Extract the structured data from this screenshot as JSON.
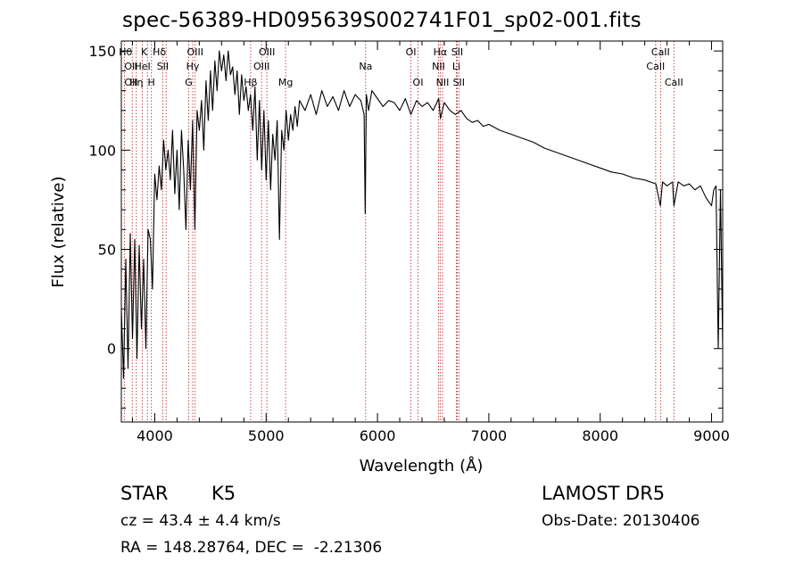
{
  "chart_data": {
    "type": "line",
    "title": "spec-56389-HD095639S002741F01_sp02-001.fits",
    "xlabel": "Wavelength (Å)",
    "ylabel": "Flux (relative)",
    "xlim": [
      3700,
      9100
    ],
    "ylim": [
      -37,
      155
    ],
    "x_ticks": [
      4000,
      5000,
      6000,
      7000,
      8000,
      9000
    ],
    "y_ticks": [
      0,
      50,
      100,
      150
    ],
    "grid": false,
    "series": [
      {
        "x": [
          3700,
          3720,
          3740,
          3760,
          3780,
          3800,
          3820,
          3840,
          3860,
          3880,
          3900,
          3920,
          3940,
          3960,
          3980,
          4000,
          4020,
          4040,
          4060,
          4080,
          4100,
          4120,
          4140,
          4160,
          4180,
          4200,
          4220,
          4240,
          4260,
          4280,
          4300,
          4320,
          4340,
          4360,
          4380,
          4400,
          4420,
          4440,
          4460,
          4480,
          4500,
          4520,
          4540,
          4560,
          4580,
          4600,
          4620,
          4640,
          4660,
          4680,
          4700,
          4720,
          4740,
          4760,
          4780,
          4800,
          4820,
          4840,
          4860,
          4880,
          4900,
          4920,
          4940,
          4960,
          4980,
          5000,
          5020,
          5040,
          5060,
          5080,
          5100,
          5120,
          5140,
          5160,
          5180,
          5200,
          5220,
          5240,
          5260,
          5280,
          5300,
          5350,
          5400,
          5450,
          5500,
          5550,
          5600,
          5650,
          5700,
          5750,
          5800,
          5850,
          5880,
          5890,
          5900,
          5920,
          5950,
          6000,
          6050,
          6100,
          6150,
          6200,
          6250,
          6300,
          6350,
          6400,
          6450,
          6500,
          6550,
          6565,
          6600,
          6650,
          6700,
          6750,
          6800,
          6850,
          6900,
          6950,
          7000,
          7100,
          7200,
          7300,
          7400,
          7500,
          7600,
          7700,
          7800,
          7900,
          8000,
          8100,
          8200,
          8300,
          8400,
          8500,
          8540,
          8560,
          8600,
          8650,
          8662,
          8700,
          8750,
          8800,
          8850,
          8900,
          8950,
          9000,
          9020,
          9040,
          9060,
          9080,
          9100
        ],
        "y": [
          20,
          -15,
          45,
          -10,
          58,
          5,
          55,
          -5,
          52,
          10,
          45,
          0,
          60,
          55,
          30,
          88,
          75,
          92,
          80,
          105,
          90,
          100,
          85,
          110,
          78,
          100,
          70,
          110,
          90,
          60,
          105,
          80,
          115,
          60,
          120,
          110,
          125,
          100,
          135,
          115,
          140,
          120,
          145,
          130,
          150,
          140,
          148,
          135,
          150,
          138,
          142,
          128,
          140,
          118,
          138,
          125,
          132,
          120,
          128,
          110,
          132,
          95,
          125,
          90,
          120,
          85,
          115,
          80,
          108,
          95,
          115,
          55,
          110,
          100,
          120,
          105,
          118,
          110,
          122,
          112,
          125,
          120,
          128,
          118,
          130,
          122,
          127,
          120,
          130,
          122,
          128,
          125,
          118,
          68,
          128,
          120,
          130,
          126,
          122,
          125,
          124,
          120,
          126,
          118,
          125,
          122,
          124,
          120,
          126,
          116,
          124,
          120,
          118,
          120,
          116,
          114,
          115,
          112,
          113,
          110,
          108,
          106,
          104,
          101,
          99,
          97,
          95,
          93,
          91,
          89,
          88,
          86,
          85,
          83,
          72,
          84,
          82,
          84,
          72,
          84,
          82,
          83,
          80,
          82,
          76,
          72,
          80,
          82,
          0,
          80,
          0
        ]
      }
    ],
    "line_labels": [
      {
        "text": "Hθ",
        "x": 3798,
        "row": 1,
        "ha": "right"
      },
      {
        "text": "OII",
        "x": 3727,
        "row": 2,
        "ha": "left"
      },
      {
        "text": "OII",
        "x": 3727,
        "row": 3,
        "ha": "left"
      },
      {
        "text": "K",
        "x": 3934,
        "row": 1,
        "ha": "right"
      },
      {
        "text": "HeI",
        "x": 3889,
        "row": 2,
        "ha": "center"
      },
      {
        "text": "Hη",
        "x": 3835,
        "row": 3,
        "ha": "center"
      },
      {
        "text": "Hδ",
        "x": 4102,
        "row": 1,
        "ha": "right"
      },
      {
        "text": "SII",
        "x": 4072,
        "row": 2,
        "ha": "center"
      },
      {
        "text": "H",
        "x": 3970,
        "row": 3,
        "ha": "center"
      },
      {
        "text": "OIII",
        "x": 4363,
        "row": 1,
        "ha": "center"
      },
      {
        "text": "Hγ",
        "x": 4341,
        "row": 2,
        "ha": "center"
      },
      {
        "text": "G",
        "x": 4305,
        "row": 3,
        "ha": "center"
      },
      {
        "text": "OIII",
        "x": 5007,
        "row": 1,
        "ha": "center"
      },
      {
        "text": "OIII",
        "x": 4959,
        "row": 2,
        "ha": "center"
      },
      {
        "text": "Hβ",
        "x": 4861,
        "row": 3,
        "ha": "center"
      },
      {
        "text": "Mg",
        "x": 5175,
        "row": 3,
        "ha": "center"
      },
      {
        "text": "Na",
        "x": 5894,
        "row": 2,
        "ha": "center"
      },
      {
        "text": "OI",
        "x": 6300,
        "row": 1,
        "ha": "center"
      },
      {
        "text": "OI",
        "x": 6364,
        "row": 3,
        "ha": "center"
      },
      {
        "text": "Hα",
        "x": 6563,
        "row": 1,
        "ha": "center"
      },
      {
        "text": "SII",
        "x": 6716,
        "row": 1,
        "ha": "center"
      },
      {
        "text": "NII",
        "x": 6548,
        "row": 2,
        "ha": "center"
      },
      {
        "text": "Li",
        "x": 6708,
        "row": 2,
        "ha": "center"
      },
      {
        "text": "NII",
        "x": 6584,
        "row": 3,
        "ha": "center"
      },
      {
        "text": "SII",
        "x": 6731,
        "row": 3,
        "ha": "center"
      },
      {
        "text": "CaII",
        "x": 8542,
        "row": 1,
        "ha": "center"
      },
      {
        "text": "CaII",
        "x": 8498,
        "row": 2,
        "ha": "center"
      },
      {
        "text": "CaII",
        "x": 8662,
        "row": 3,
        "ha": "center"
      }
    ],
    "line_positions": [
      3727,
      3798,
      3835,
      3889,
      3934,
      3970,
      4072,
      4102,
      4305,
      4341,
      4363,
      4861,
      4959,
      5007,
      5175,
      5894,
      6300,
      6364,
      6548,
      6563,
      6584,
      6708,
      6716,
      6731,
      8498,
      8542,
      8662
    ]
  },
  "info": {
    "object_class": "STAR",
    "subclass": "K5",
    "survey": "LAMOST DR5",
    "cz": "cz = 43.4 ± 4.4 km/s",
    "obs_date": "Obs-Date: 20130406",
    "coords": "RA = 148.28764, DEC =  -2.21306"
  },
  "colors": {
    "spectrum": "#000000",
    "line_markers": "#b22222",
    "axes": "#000000"
  }
}
